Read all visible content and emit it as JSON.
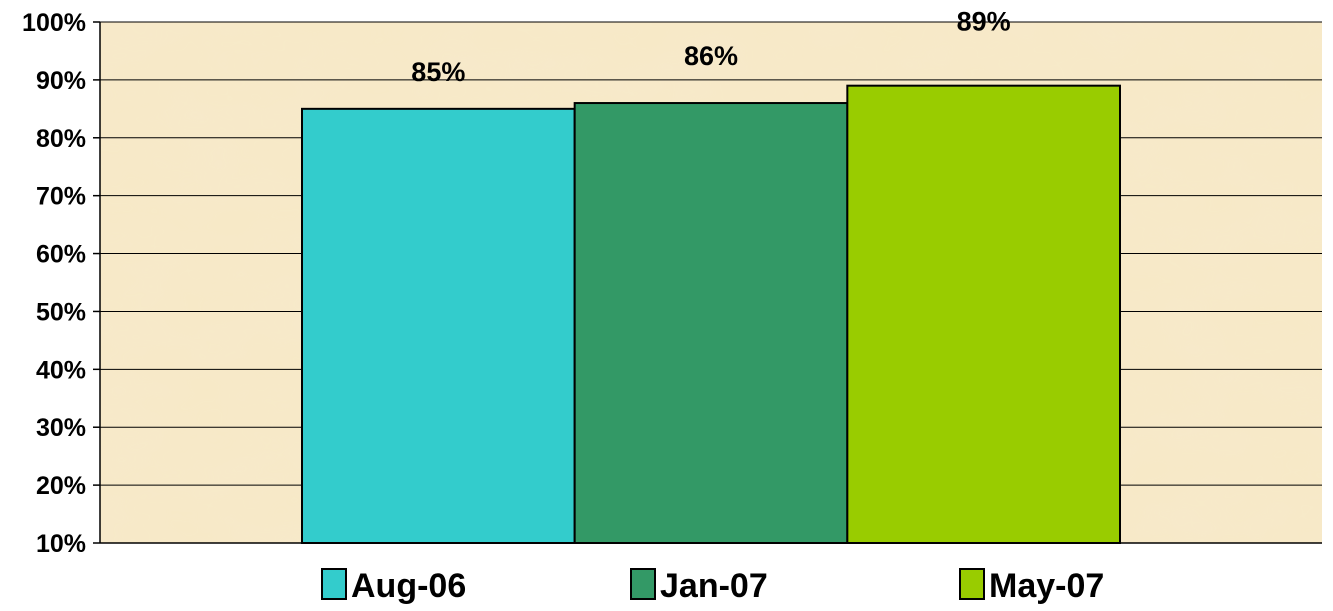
{
  "chart_data": {
    "type": "bar",
    "categories": [
      "Aug-06",
      "Jan-07",
      "May-07"
    ],
    "values": [
      85,
      86,
      89
    ],
    "data_labels": [
      "85%",
      "86%",
      "89%"
    ],
    "colors": [
      "#33CCCC",
      "#339966",
      "#99CC00"
    ],
    "ylim": [
      10,
      100
    ],
    "y_ticks": [
      10,
      20,
      30,
      40,
      50,
      60,
      70,
      80,
      90,
      100
    ],
    "y_tick_labels": [
      "10%",
      "20%",
      "30%",
      "40%",
      "50%",
      "60%",
      "70%",
      "80%",
      "90%",
      "100%"
    ],
    "grid": true,
    "legend": {
      "position": "bottom",
      "entries": [
        "Aug-06",
        "Jan-07",
        "May-07"
      ]
    },
    "plot_background": "#F7E9C6",
    "title": "",
    "xlabel": "",
    "ylabel": ""
  }
}
